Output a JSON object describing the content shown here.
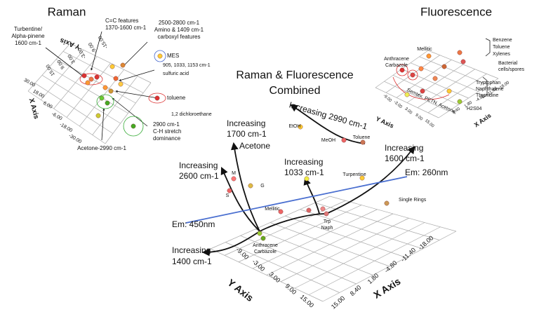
{
  "raman": {
    "title": "Raman",
    "y_axis": "Y Axis",
    "x_axis": "X Axis",
    "y_ticks": [
      "15.00",
      "9.00",
      "3.00",
      "-3.00",
      "-9.00",
      "-15.00"
    ],
    "x_ticks": [
      "30.00",
      "18.00",
      "6.00",
      "-6.00",
      "-18.00",
      "-30.00"
    ],
    "labels": {
      "turpentine": [
        "Turbentine/",
        "Alpha-pinene",
        "1600 cm-1"
      ],
      "cc": [
        "C=C features",
        "1370-1600 cm-1"
      ],
      "amino": [
        "2500-2800 cm-1",
        "Amino & 1409 cm-1",
        "carboxyl features"
      ],
      "mes": [
        "MES"
      ],
      "sulfuric": [
        "905, 1033, 1153 cm-1",
        "sulfuric acid"
      ],
      "toluene": [
        "toluene"
      ],
      "dichloro": [
        "1,2 dichloroethane"
      ],
      "ch": [
        "2900 cm-1",
        "C-H stretch",
        "dominance"
      ],
      "acetone": [
        "Acetone-2990 cm-1"
      ]
    }
  },
  "fluorescence": {
    "title": "Fluorescence",
    "y_axis": "Y Axis",
    "x_axis": "X Axis",
    "y_ticks": [
      "15.00",
      "9.00",
      "3.00",
      "-3.00",
      "-9.00"
    ],
    "x_ticks": [
      "-18.00",
      "-11.40",
      "-4.80",
      "1.80",
      "8.40"
    ],
    "labels": {
      "mellitic": [
        "Mellitic"
      ],
      "btx": [
        "Benzene",
        "Toluene",
        "Xylenes"
      ],
      "anthracene": [
        "Anthracene",
        "Carbazole"
      ],
      "bacterial": [
        "Bacterial",
        "cells/spores"
      ],
      "tryptophan": [
        "Tryptophan",
        "Naphthalene",
        "Thymidine"
      ],
      "semtex": [
        "Semtex, PETN, Acetone,",
        "H2S04"
      ]
    }
  },
  "combined": {
    "title": [
      "Raman & Fluorescence",
      "Combined"
    ],
    "y_axis": "Y Axis",
    "x_axis": "X Axis",
    "y_ticks": [
      "-9.00",
      "-3.00",
      "3.00",
      "9.00",
      "15.00"
    ],
    "x_ticks": [
      "15.00",
      "8.40",
      "1.80",
      "-4.80",
      "-11.40",
      "-18.00"
    ],
    "labels": {
      "inc2990": [
        "Increasing 2990 cm-1"
      ],
      "etoh": [
        "EtOH"
      ],
      "meoh": [
        "MeOH"
      ],
      "toluene": [
        "Toluene"
      ],
      "inc1700": [
        "Increasing",
        "1700 cm-1"
      ],
      "acetone": [
        "Acetone"
      ],
      "inc1033": [
        "Increasing",
        "1033 cm-1"
      ],
      "inc1600": [
        "Increasing",
        "1600 cm-1"
      ],
      "turpentine": [
        "Turpentine"
      ],
      "em260": [
        "Em: 260nm"
      ],
      "single": [
        "Single Rings"
      ],
      "inc2600": [
        "Increasing",
        "2600 cm-1"
      ],
      "m": [
        "M"
      ],
      "g": [
        "G"
      ],
      "s": [
        "S"
      ],
      "mellitic": [
        "Mellitic"
      ],
      "trp": [
        "Trp",
        "Naph"
      ],
      "em450": [
        "Em: 450nm"
      ],
      "anthracene": [
        "Anthracene",
        "Carbazole"
      ],
      "inc1400": [
        "Increasing",
        "1400 cm-1"
      ]
    }
  }
}
